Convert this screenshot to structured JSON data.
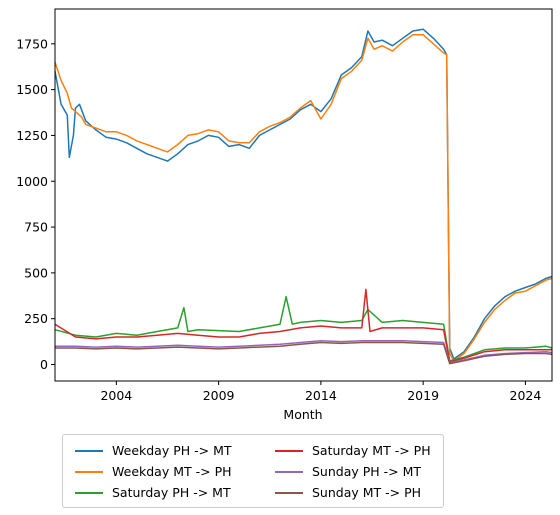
{
  "chart_data": {
    "type": "line",
    "title": "",
    "xlabel": "Month",
    "ylabel": "",
    "xlim": [
      2001.0,
      2025.3
    ],
    "ylim": [
      -90,
      1940
    ],
    "x_ticks": [
      2004,
      2009,
      2014,
      2019,
      2024
    ],
    "x_tick_labels": [
      "2004",
      "2009",
      "2014",
      "2019",
      "2024"
    ],
    "y_ticks": [
      0,
      250,
      500,
      750,
      1000,
      1250,
      1500,
      1750
    ],
    "y_tick_labels": [
      "0",
      "250",
      "500",
      "750",
      "1000",
      "1250",
      "1500",
      "1750"
    ],
    "grid": false,
    "legend_position": "below",
    "series": [
      {
        "name": "Weekday PH -> MT",
        "color": "#1f77b4",
        "points": [
          [
            2001.0,
            1600
          ],
          [
            2001.3,
            1420
          ],
          [
            2001.6,
            1360
          ],
          [
            2001.7,
            1130
          ],
          [
            2001.9,
            1250
          ],
          [
            2002.0,
            1400
          ],
          [
            2002.2,
            1420
          ],
          [
            2002.5,
            1330
          ],
          [
            2003.0,
            1280
          ],
          [
            2003.5,
            1240
          ],
          [
            2004.0,
            1230
          ],
          [
            2004.5,
            1210
          ],
          [
            2005.0,
            1180
          ],
          [
            2005.5,
            1150
          ],
          [
            2006.0,
            1130
          ],
          [
            2006.5,
            1110
          ],
          [
            2007.0,
            1150
          ],
          [
            2007.5,
            1200
          ],
          [
            2008.0,
            1220
          ],
          [
            2008.5,
            1250
          ],
          [
            2009.0,
            1240
          ],
          [
            2009.5,
            1190
          ],
          [
            2010.0,
            1200
          ],
          [
            2010.5,
            1180
          ],
          [
            2011.0,
            1250
          ],
          [
            2011.5,
            1280
          ],
          [
            2012.0,
            1310
          ],
          [
            2012.5,
            1340
          ],
          [
            2013.0,
            1390
          ],
          [
            2013.5,
            1420
          ],
          [
            2014.0,
            1380
          ],
          [
            2014.5,
            1450
          ],
          [
            2015.0,
            1580
          ],
          [
            2015.5,
            1620
          ],
          [
            2016.0,
            1680
          ],
          [
            2016.3,
            1820
          ],
          [
            2016.6,
            1760
          ],
          [
            2017.0,
            1770
          ],
          [
            2017.5,
            1740
          ],
          [
            2018.0,
            1780
          ],
          [
            2018.5,
            1820
          ],
          [
            2019.0,
            1830
          ],
          [
            2019.5,
            1780
          ],
          [
            2020.0,
            1720
          ],
          [
            2020.15,
            1690
          ],
          [
            2020.3,
            90
          ],
          [
            2020.5,
            30
          ],
          [
            2021.0,
            70
          ],
          [
            2021.5,
            150
          ],
          [
            2022.0,
            250
          ],
          [
            2022.5,
            320
          ],
          [
            2023.0,
            370
          ],
          [
            2023.5,
            400
          ],
          [
            2024.0,
            420
          ],
          [
            2024.5,
            440
          ],
          [
            2025.0,
            470
          ],
          [
            2025.3,
            480
          ]
        ]
      },
      {
        "name": "Weekday MT -> PH",
        "color": "#ff7f0e",
        "points": [
          [
            2001.0,
            1650
          ],
          [
            2001.3,
            1550
          ],
          [
            2001.6,
            1480
          ],
          [
            2001.8,
            1400
          ],
          [
            2002.0,
            1380
          ],
          [
            2002.3,
            1350
          ],
          [
            2002.5,
            1310
          ],
          [
            2003.0,
            1290
          ],
          [
            2003.5,
            1270
          ],
          [
            2004.0,
            1270
          ],
          [
            2004.5,
            1250
          ],
          [
            2005.0,
            1220
          ],
          [
            2005.5,
            1200
          ],
          [
            2006.0,
            1180
          ],
          [
            2006.5,
            1160
          ],
          [
            2007.0,
            1200
          ],
          [
            2007.5,
            1250
          ],
          [
            2008.0,
            1260
          ],
          [
            2008.5,
            1280
          ],
          [
            2009.0,
            1270
          ],
          [
            2009.5,
            1220
          ],
          [
            2010.0,
            1210
          ],
          [
            2010.5,
            1210
          ],
          [
            2011.0,
            1270
          ],
          [
            2011.5,
            1300
          ],
          [
            2012.0,
            1320
          ],
          [
            2012.5,
            1350
          ],
          [
            2013.0,
            1400
          ],
          [
            2013.5,
            1440
          ],
          [
            2014.0,
            1340
          ],
          [
            2014.5,
            1420
          ],
          [
            2015.0,
            1560
          ],
          [
            2015.5,
            1600
          ],
          [
            2016.0,
            1660
          ],
          [
            2016.3,
            1780
          ],
          [
            2016.6,
            1720
          ],
          [
            2017.0,
            1740
          ],
          [
            2017.5,
            1710
          ],
          [
            2018.0,
            1760
          ],
          [
            2018.5,
            1800
          ],
          [
            2019.0,
            1800
          ],
          [
            2019.5,
            1750
          ],
          [
            2020.0,
            1700
          ],
          [
            2020.15,
            1690
          ],
          [
            2020.3,
            60
          ],
          [
            2020.5,
            20
          ],
          [
            2021.0,
            60
          ],
          [
            2021.5,
            140
          ],
          [
            2022.0,
            230
          ],
          [
            2022.5,
            300
          ],
          [
            2023.0,
            350
          ],
          [
            2023.5,
            390
          ],
          [
            2024.0,
            400
          ],
          [
            2024.5,
            430
          ],
          [
            2025.0,
            460
          ],
          [
            2025.3,
            470
          ]
        ]
      },
      {
        "name": "Saturday PH -> MT",
        "color": "#2ca02c",
        "points": [
          [
            2001.0,
            190
          ],
          [
            2002.0,
            160
          ],
          [
            2003.0,
            150
          ],
          [
            2004.0,
            170
          ],
          [
            2005.0,
            160
          ],
          [
            2006.0,
            180
          ],
          [
            2007.0,
            200
          ],
          [
            2007.3,
            310
          ],
          [
            2007.5,
            180
          ],
          [
            2008.0,
            190
          ],
          [
            2009.0,
            185
          ],
          [
            2010.0,
            180
          ],
          [
            2011.0,
            200
          ],
          [
            2012.0,
            220
          ],
          [
            2012.3,
            370
          ],
          [
            2012.6,
            220
          ],
          [
            2013.0,
            230
          ],
          [
            2014.0,
            240
          ],
          [
            2015.0,
            230
          ],
          [
            2016.0,
            240
          ],
          [
            2016.3,
            300
          ],
          [
            2017.0,
            230
          ],
          [
            2018.0,
            240
          ],
          [
            2019.0,
            230
          ],
          [
            2020.0,
            220
          ],
          [
            2020.3,
            20
          ],
          [
            2021.0,
            40
          ],
          [
            2022.0,
            80
          ],
          [
            2023.0,
            90
          ],
          [
            2024.0,
            90
          ],
          [
            2025.0,
            100
          ],
          [
            2025.3,
            90
          ]
        ]
      },
      {
        "name": "Saturday MT -> PH",
        "color": "#d62728",
        "points": [
          [
            2001.0,
            220
          ],
          [
            2002.0,
            150
          ],
          [
            2003.0,
            140
          ],
          [
            2004.0,
            150
          ],
          [
            2005.0,
            150
          ],
          [
            2006.0,
            160
          ],
          [
            2007.0,
            170
          ],
          [
            2008.0,
            160
          ],
          [
            2009.0,
            150
          ],
          [
            2010.0,
            150
          ],
          [
            2011.0,
            170
          ],
          [
            2012.0,
            180
          ],
          [
            2013.0,
            200
          ],
          [
            2014.0,
            210
          ],
          [
            2015.0,
            200
          ],
          [
            2016.0,
            200
          ],
          [
            2016.2,
            410
          ],
          [
            2016.4,
            180
          ],
          [
            2017.0,
            200
          ],
          [
            2018.0,
            200
          ],
          [
            2019.0,
            200
          ],
          [
            2020.0,
            190
          ],
          [
            2020.3,
            15
          ],
          [
            2021.0,
            35
          ],
          [
            2022.0,
            70
          ],
          [
            2023.0,
            80
          ],
          [
            2024.0,
            80
          ],
          [
            2025.0,
            80
          ],
          [
            2025.3,
            80
          ]
        ]
      },
      {
        "name": "Sunday PH -> MT",
        "color": "#9467bd",
        "points": [
          [
            2001.0,
            100
          ],
          [
            2002.0,
            100
          ],
          [
            2003.0,
            95
          ],
          [
            2004.0,
            100
          ],
          [
            2005.0,
            95
          ],
          [
            2006.0,
            100
          ],
          [
            2007.0,
            105
          ],
          [
            2008.0,
            100
          ],
          [
            2009.0,
            95
          ],
          [
            2010.0,
            100
          ],
          [
            2011.0,
            105
          ],
          [
            2012.0,
            110
          ],
          [
            2013.0,
            120
          ],
          [
            2014.0,
            130
          ],
          [
            2015.0,
            125
          ],
          [
            2016.0,
            130
          ],
          [
            2017.0,
            130
          ],
          [
            2018.0,
            130
          ],
          [
            2019.0,
            125
          ],
          [
            2020.0,
            120
          ],
          [
            2020.3,
            10
          ],
          [
            2021.0,
            25
          ],
          [
            2022.0,
            50
          ],
          [
            2023.0,
            60
          ],
          [
            2024.0,
            65
          ],
          [
            2025.0,
            70
          ],
          [
            2025.3,
            65
          ]
        ]
      },
      {
        "name": "Sunday MT -> PH",
        "color": "#8c564b",
        "points": [
          [
            2001.0,
            90
          ],
          [
            2002.0,
            90
          ],
          [
            2003.0,
            85
          ],
          [
            2004.0,
            90
          ],
          [
            2005.0,
            85
          ],
          [
            2006.0,
            90
          ],
          [
            2007.0,
            95
          ],
          [
            2008.0,
            90
          ],
          [
            2009.0,
            85
          ],
          [
            2010.0,
            90
          ],
          [
            2011.0,
            95
          ],
          [
            2012.0,
            100
          ],
          [
            2013.0,
            110
          ],
          [
            2014.0,
            120
          ],
          [
            2015.0,
            115
          ],
          [
            2016.0,
            120
          ],
          [
            2017.0,
            120
          ],
          [
            2018.0,
            120
          ],
          [
            2019.0,
            115
          ],
          [
            2020.0,
            110
          ],
          [
            2020.3,
            5
          ],
          [
            2021.0,
            20
          ],
          [
            2022.0,
            45
          ],
          [
            2023.0,
            55
          ],
          [
            2024.0,
            60
          ],
          [
            2025.0,
            60
          ],
          [
            2025.3,
            55
          ]
        ]
      }
    ]
  }
}
